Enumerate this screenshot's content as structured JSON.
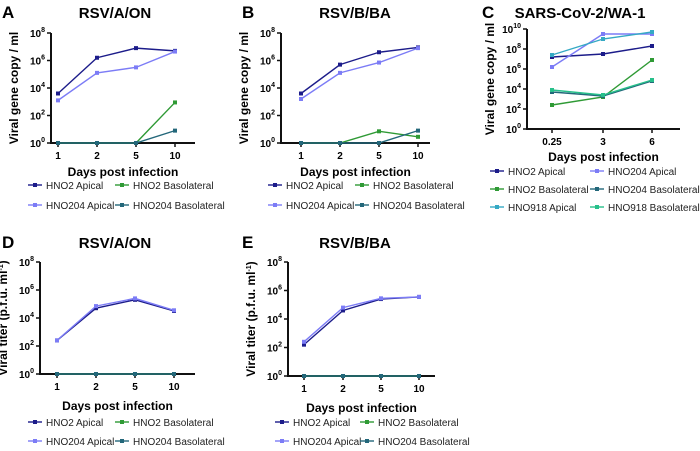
{
  "colors": {
    "HNO2 Apical": "#1c1c8a",
    "HNO204 Apical": "#7c7cf6",
    "HNO2 Basolateral": "#2f9a35",
    "HNO204 Basolateral": "#23677a",
    "HNO918 Apical": "#35a9c4",
    "HNO918 Basolateral": "#27c08a"
  },
  "chart_data": [
    {
      "type": "line",
      "panel": "A",
      "title": "RSV/A/ON",
      "xlabel": "Days post infection",
      "ylabel": "Viral gene copy / ml",
      "yscale": "log10",
      "ylim_exp": [
        0,
        8
      ],
      "yticks_exp": [
        0,
        2,
        4,
        6,
        8
      ],
      "categories": [
        "1",
        "2",
        "5",
        "10"
      ],
      "series": [
        {
          "name": "HNO2 Apical",
          "values_exp": [
            3.6,
            6.2,
            6.9,
            6.7
          ]
        },
        {
          "name": "HNO2 Basolateral",
          "values_exp": [
            0,
            0,
            0,
            2.95
          ]
        },
        {
          "name": "HNO204 Apical",
          "values_exp": [
            3.1,
            5.1,
            5.5,
            6.65
          ]
        },
        {
          "name": "HNO204 Basolateral",
          "values_exp": [
            0,
            0,
            0,
            0.9
          ]
        }
      ]
    },
    {
      "type": "line",
      "panel": "B",
      "title": "RSV/B/BA",
      "xlabel": "Days post infection",
      "ylabel": "Viral gene copy / ml",
      "yscale": "log10",
      "ylim_exp": [
        0,
        8
      ],
      "yticks_exp": [
        0,
        2,
        4,
        6,
        8
      ],
      "categories": [
        "1",
        "2",
        "5",
        "10"
      ],
      "series": [
        {
          "name": "HNO2 Apical",
          "values_exp": [
            3.6,
            5.7,
            6.6,
            6.95
          ]
        },
        {
          "name": "HNO2 Basolateral",
          "values_exp": [
            0,
            0,
            0.85,
            0.45
          ]
        },
        {
          "name": "HNO204 Apical",
          "values_exp": [
            3.2,
            5.1,
            5.85,
            6.9
          ]
        },
        {
          "name": "HNO204 Basolateral",
          "values_exp": [
            0,
            0,
            0,
            0.9
          ]
        }
      ]
    },
    {
      "type": "line",
      "panel": "C",
      "title": "SARS-CoV-2/WA-1",
      "xlabel": "Days post infection",
      "ylabel": "Viral gene copy / ml",
      "yscale": "log10",
      "ylim_exp": [
        0,
        10
      ],
      "yticks_exp": [
        0,
        2,
        4,
        6,
        8,
        10
      ],
      "categories": [
        "0.25",
        "3",
        "6"
      ],
      "series": [
        {
          "name": "HNO2 Apical",
          "values_exp": [
            7.2,
            7.5,
            8.3
          ]
        },
        {
          "name": "HNO204 Apical",
          "values_exp": [
            6.2,
            9.5,
            9.5
          ]
        },
        {
          "name": "HNO2 Basolateral",
          "values_exp": [
            2.4,
            3.2,
            6.9
          ]
        },
        {
          "name": "HNO204 Basolateral",
          "values_exp": [
            3.7,
            3.3,
            4.8
          ]
        },
        {
          "name": "HNO918 Apical",
          "values_exp": [
            7.4,
            9.0,
            9.7
          ]
        },
        {
          "name": "HNO918 Basolateral",
          "values_exp": [
            3.9,
            3.4,
            4.9
          ]
        }
      ]
    },
    {
      "type": "line",
      "panel": "D",
      "title": "RSV/A/ON",
      "xlabel": "Days post infection",
      "ylabel": "Viral titer (p.f.u. ml",
      "ylabel_sup": "-1",
      "ylabel_end": ")",
      "yscale": "log10",
      "ylim_exp": [
        0,
        8
      ],
      "yticks_exp": [
        0,
        2,
        4,
        6,
        8
      ],
      "categories": [
        "1",
        "2",
        "5",
        "10"
      ],
      "series": [
        {
          "name": "HNO2 Apical",
          "values_exp": [
            2.4,
            4.7,
            5.3,
            4.5
          ]
        },
        {
          "name": "HNO2 Basolateral",
          "values_exp": [
            0,
            0,
            0,
            0
          ]
        },
        {
          "name": "HNO204 Apical",
          "values_exp": [
            2.4,
            4.85,
            5.4,
            4.55
          ]
        },
        {
          "name": "HNO204 Basolateral",
          "values_exp": [
            0,
            0,
            0,
            0
          ]
        }
      ]
    },
    {
      "type": "line",
      "panel": "E",
      "title": "RSV/B/BA",
      "xlabel": "Days post infection",
      "ylabel": "Viral titer (p.f.u. ml",
      "ylabel_sup": "-1",
      "ylabel_end": ")",
      "yscale": "log10",
      "ylim_exp": [
        0,
        8
      ],
      "yticks_exp": [
        0,
        2,
        4,
        6,
        8
      ],
      "categories": [
        "1",
        "2",
        "5",
        "10"
      ],
      "series": [
        {
          "name": "HNO2 Apical",
          "values_exp": [
            2.2,
            4.6,
            5.4,
            5.55
          ]
        },
        {
          "name": "HNO2 Basolateral",
          "values_exp": [
            0,
            0,
            0,
            0
          ]
        },
        {
          "name": "HNO204 Apical",
          "values_exp": [
            2.4,
            4.8,
            5.45,
            5.55
          ]
        },
        {
          "name": "HNO204 Basolateral",
          "values_exp": [
            0,
            0,
            0,
            0
          ]
        }
      ]
    }
  ]
}
